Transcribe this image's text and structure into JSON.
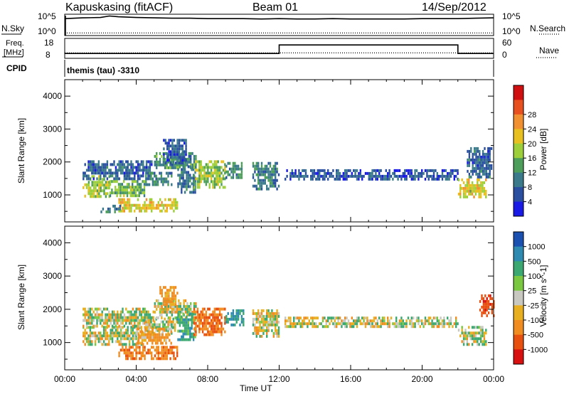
{
  "header": {
    "station": "Kapuskasing (fitACF)",
    "beam": "Beam 01",
    "date": "14/Sep/2012"
  },
  "noise_panel": {
    "left_label": "N.Sky",
    "left_ticks": [
      "10^5",
      "10^0"
    ],
    "right_ticks": [
      "10^5",
      "10^0"
    ],
    "right_label": "N.Search",
    "right_legend_style": "dotted"
  },
  "freq_panel": {
    "left_label_line1": "Freq.",
    "left_label_line2": "[MHz]",
    "left_ticks": [
      "18",
      "8"
    ],
    "right_ticks": [
      "60",
      "0"
    ],
    "right_label": "Nave",
    "right_legend_style": "dotted"
  },
  "cpid_panel": {
    "label": "CPID",
    "program": "themis (tau) -3310"
  },
  "time_axis": {
    "ticks": [
      "00:00",
      "04:00",
      "08:00",
      "12:00",
      "16:00",
      "20:00",
      "00:00"
    ],
    "label": "Time UT"
  },
  "chart_data": [
    {
      "type": "line",
      "name": "noise",
      "x_range_hours": [
        0,
        24
      ],
      "series": [
        {
          "name": "N.Sky",
          "style": "solid",
          "x": [
            0.0,
            1.0,
            2.0,
            2.5,
            3.0,
            3.5,
            4.0,
            5.0,
            6.0,
            7.0,
            8.0,
            9.0,
            10.0,
            11.0,
            12.0,
            13.0,
            14.0,
            15.0,
            16.0,
            17.0,
            18.0,
            19.0,
            20.0,
            21.0,
            22.0,
            23.0,
            24.0
          ],
          "y_log10": [
            4.2,
            4.4,
            4.5,
            4.9,
            4.7,
            4.6,
            4.5,
            4.4,
            4.3,
            4.3,
            4.2,
            4.2,
            4.2,
            4.1,
            4.2,
            4.1,
            4.1,
            4.2,
            4.1,
            4.1,
            4.1,
            4.1,
            4.2,
            4.2,
            4.2,
            4.3,
            4.4
          ]
        },
        {
          "name": "N.Search",
          "style": "dotted",
          "x": [
            0,
            24
          ],
          "y_log10": [
            0.3,
            0.3
          ]
        }
      ]
    },
    {
      "type": "line",
      "name": "frequency",
      "x_range_hours": [
        0,
        24
      ],
      "series": [
        {
          "name": "Freq.",
          "style": "solid",
          "x": [
            0,
            12,
            12,
            22,
            22,
            24
          ],
          "y": [
            10,
            10,
            15,
            15,
            10,
            10
          ]
        },
        {
          "name": "Nave",
          "style": "dotted",
          "x": [
            0,
            24
          ],
          "y": [
            14,
            14
          ]
        }
      ]
    },
    {
      "type": "heatmap",
      "name": "power",
      "ylabel": "Slant Range [km]",
      "ylim": [
        180,
        4500
      ],
      "yticks": [
        1000,
        2000,
        3000,
        4000
      ],
      "colorbar_label": "Power [dB]",
      "colorbar_ticks": [
        4,
        8,
        12,
        16,
        20,
        24,
        28
      ],
      "colorscale": [
        "#1a1ae6",
        "#2a4ea0",
        "#3a7a8a",
        "#4d9e5a",
        "#9ccf3a",
        "#e8c020",
        "#f09030",
        "#e85020",
        "#d01010"
      ],
      "regions": [
        {
          "t": [
            1.0,
            1.3
          ],
          "r": [
            950,
            1350
          ],
          "p": 15
        },
        {
          "t": [
            1.3,
            2.5
          ],
          "r": [
            980,
            1600
          ],
          "p": 14
        },
        {
          "t": [
            2.5,
            4.5
          ],
          "r": [
            950,
            1450
          ],
          "p": 12
        },
        {
          "t": [
            1.0,
            5.0
          ],
          "r": [
            1500,
            2050
          ],
          "p": 5
        },
        {
          "t": [
            4.5,
            6.0
          ],
          "r": [
            1300,
            1700
          ],
          "p": 8
        },
        {
          "t": [
            5.0,
            7.3
          ],
          "r": [
            1800,
            2300
          ],
          "p": 9
        },
        {
          "t": [
            5.5,
            6.8
          ],
          "r": [
            2000,
            2700
          ],
          "p": 4
        },
        {
          "t": [
            3.0,
            6.3
          ],
          "r": [
            520,
            900
          ],
          "p": 17
        },
        {
          "t": [
            2.0,
            3.2
          ],
          "r": [
            480,
            700
          ],
          "p": 7
        },
        {
          "t": [
            6.3,
            7.3
          ],
          "r": [
            1100,
            1900
          ],
          "p": 6
        },
        {
          "t": [
            7.2,
            9.0
          ],
          "r": [
            1250,
            2050
          ],
          "p": 13
        },
        {
          "t": [
            9.0,
            10.0
          ],
          "r": [
            1550,
            2000
          ],
          "p": 8
        },
        {
          "t": [
            10.5,
            12.0
          ],
          "r": [
            1200,
            2000
          ],
          "p": 7
        },
        {
          "t": [
            12.3,
            22.0
          ],
          "r": [
            1450,
            1780
          ],
          "p": 4
        },
        {
          "t": [
            22.0,
            23.6
          ],
          "r": [
            950,
            1500
          ],
          "p": 16
        },
        {
          "t": [
            22.5,
            23.9
          ],
          "r": [
            1500,
            2450
          ],
          "p": 5
        }
      ]
    },
    {
      "type": "heatmap",
      "name": "velocity",
      "ylabel": "Slant Range [km]",
      "ylim": [
        180,
        4500
      ],
      "yticks": [
        1000,
        2000,
        3000,
        4000
      ],
      "colorbar_label": "Velocity [m s^-1]",
      "colorbar_ticks": [
        "1000",
        "500",
        "100",
        "25",
        "-25",
        "-100",
        "-500",
        "-1000"
      ],
      "colorscale": [
        "#1a50b0",
        "#2e8ab0",
        "#3aa870",
        "#7ac840",
        "#c8c8c0",
        "#e8b020",
        "#f08c20",
        "#e85010",
        "#d81010"
      ],
      "regions": [
        {
          "t": [
            1.0,
            4.5
          ],
          "r": [
            950,
            1500
          ],
          "v": 0
        },
        {
          "t": [
            1.0,
            5.0
          ],
          "r": [
            1500,
            2050
          ],
          "v": 0
        },
        {
          "t": [
            4.5,
            6.3
          ],
          "r": [
            1300,
            1750
          ],
          "v": 0
        },
        {
          "t": [
            5.0,
            7.3
          ],
          "r": [
            1750,
            2300
          ],
          "v": 0
        },
        {
          "t": [
            3.0,
            6.3
          ],
          "r": [
            520,
            900
          ],
          "v": -350
        },
        {
          "t": [
            4.0,
            6.0
          ],
          "r": [
            950,
            1450
          ],
          "v": -150
        },
        {
          "t": [
            5.3,
            6.3
          ],
          "r": [
            2100,
            2700
          ],
          "v": -200
        },
        {
          "t": [
            6.3,
            7.3
          ],
          "r": [
            1100,
            1900
          ],
          "v": 200
        },
        {
          "t": [
            7.2,
            9.0
          ],
          "r": [
            1250,
            2050
          ],
          "v": -400
        },
        {
          "t": [
            9.0,
            10.0
          ],
          "r": [
            1550,
            2000
          ],
          "v": 300
        },
        {
          "t": [
            10.5,
            12.0
          ],
          "r": [
            1200,
            2000
          ],
          "v": 0
        },
        {
          "t": [
            12.3,
            22.0
          ],
          "r": [
            1450,
            1780
          ],
          "v": 0
        },
        {
          "t": [
            22.0,
            23.6
          ],
          "r": [
            950,
            1500
          ],
          "v": 0
        },
        {
          "t": [
            23.2,
            24.0
          ],
          "r": [
            1800,
            2450
          ],
          "v": -600
        }
      ]
    }
  ]
}
